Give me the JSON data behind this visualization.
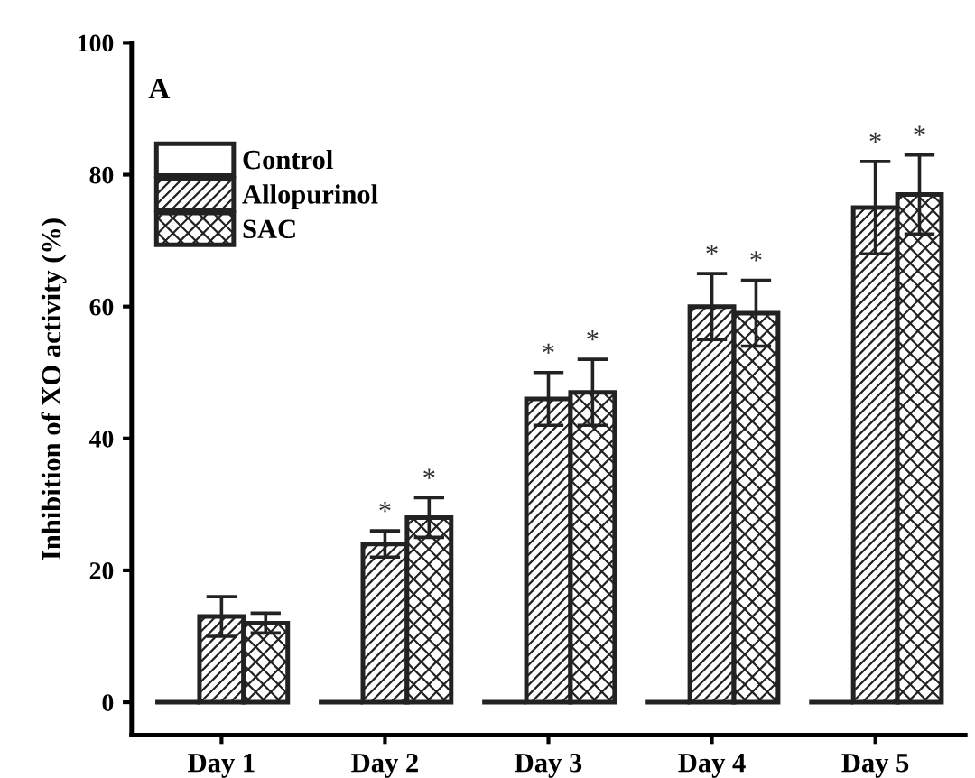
{
  "chart_data": {
    "type": "bar",
    "ylabel": "Inhibition of XO activity (%)",
    "categories": [
      "Day 1",
      "Day 2",
      "Day 3",
      "Day 4",
      "Day 5"
    ],
    "series": [
      {
        "name": "Control",
        "color": "#222222",
        "values": [
          0,
          0,
          0,
          0,
          0
        ]
      },
      {
        "name": "Allopurinol",
        "color": "#222222",
        "values": [
          13,
          24,
          46,
          60,
          75
        ],
        "errors": [
          3,
          2,
          4,
          5,
          7
        ],
        "value_labels": [
          null,
          "*",
          "*",
          "*",
          "*"
        ]
      },
      {
        "name": "SAC",
        "color": "#222222",
        "values": [
          12,
          28,
          47,
          59,
          77
        ],
        "errors": [
          1.5,
          3,
          5,
          5,
          6
        ],
        "value_labels": [
          null,
          "*",
          "*",
          "*",
          "*"
        ]
      }
    ],
    "ylim": [
      -5,
      100
    ],
    "yticks": [
      0,
      20,
      40,
      60,
      80,
      100
    ],
    "annotations": [
      "A"
    ],
    "legend": "top left",
    "grid": false
  }
}
